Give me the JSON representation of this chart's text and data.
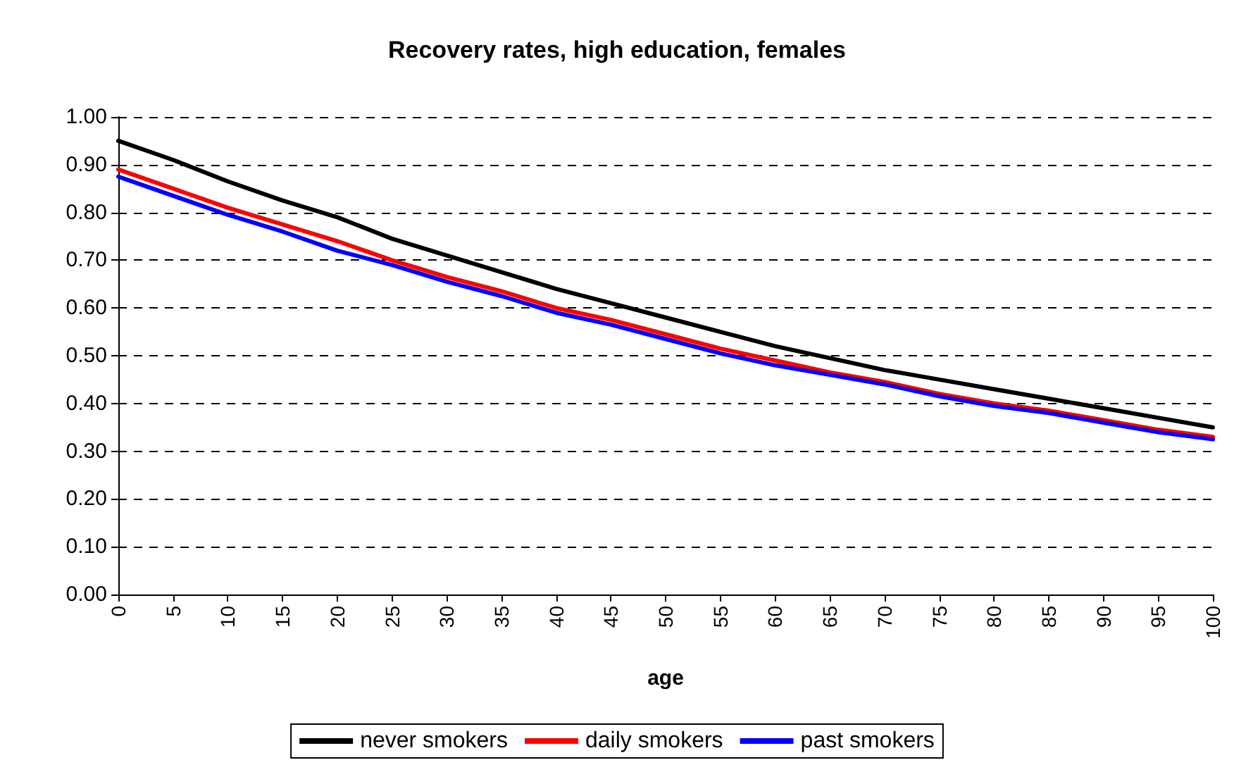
{
  "chart_data": {
    "type": "line",
    "title": "Recovery rates, high education, females",
    "xlabel": "age",
    "x": [
      0,
      5,
      10,
      15,
      20,
      25,
      30,
      35,
      40,
      45,
      50,
      55,
      60,
      65,
      70,
      75,
      80,
      85,
      90,
      95,
      100
    ],
    "series": [
      {
        "name": "never smokers",
        "color": "#000000",
        "values": [
          0.95,
          0.91,
          0.865,
          0.825,
          0.79,
          0.745,
          0.71,
          0.675,
          0.64,
          0.61,
          0.58,
          0.55,
          0.52,
          0.495,
          0.47,
          0.45,
          0.43,
          0.41,
          0.39,
          0.37,
          0.35
        ]
      },
      {
        "name": "daily smokers",
        "color": "#ff0000",
        "values": [
          0.89,
          0.85,
          0.81,
          0.775,
          0.74,
          0.7,
          0.665,
          0.635,
          0.6,
          0.575,
          0.545,
          0.515,
          0.49,
          0.465,
          0.445,
          0.42,
          0.4,
          0.385,
          0.365,
          0.345,
          0.33
        ]
      },
      {
        "name": "past smokers",
        "color": "#0000ff",
        "values": [
          0.875,
          0.835,
          0.795,
          0.76,
          0.72,
          0.69,
          0.655,
          0.625,
          0.59,
          0.565,
          0.535,
          0.505,
          0.48,
          0.46,
          0.44,
          0.415,
          0.395,
          0.38,
          0.36,
          0.34,
          0.325
        ]
      }
    ],
    "xlim": [
      0,
      100
    ],
    "xticks": [
      0,
      5,
      10,
      15,
      20,
      25,
      30,
      35,
      40,
      45,
      50,
      55,
      60,
      65,
      70,
      75,
      80,
      85,
      90,
      95,
      100
    ],
    "ylim": [
      0,
      1
    ],
    "yticks": [
      {
        "value": 0,
        "label": "0.00"
      },
      {
        "value": 0.1,
        "label": "0.10"
      },
      {
        "value": 0.2,
        "label": "0.20"
      },
      {
        "value": 0.3,
        "label": "0.30"
      },
      {
        "value": 0.4,
        "label": "0.40"
      },
      {
        "value": 0.5,
        "label": "0.50"
      },
      {
        "value": 0.6,
        "label": "0.60"
      },
      {
        "value": 0.7,
        "label": "0.70"
      },
      {
        "value": 0.8,
        "label": "0.80"
      },
      {
        "value": 0.9,
        "label": "0.90"
      },
      {
        "value": 1,
        "label": "1.00"
      }
    ],
    "grid": "y",
    "legend": "bottom",
    "marker": "none",
    "line_style": "solid"
  }
}
